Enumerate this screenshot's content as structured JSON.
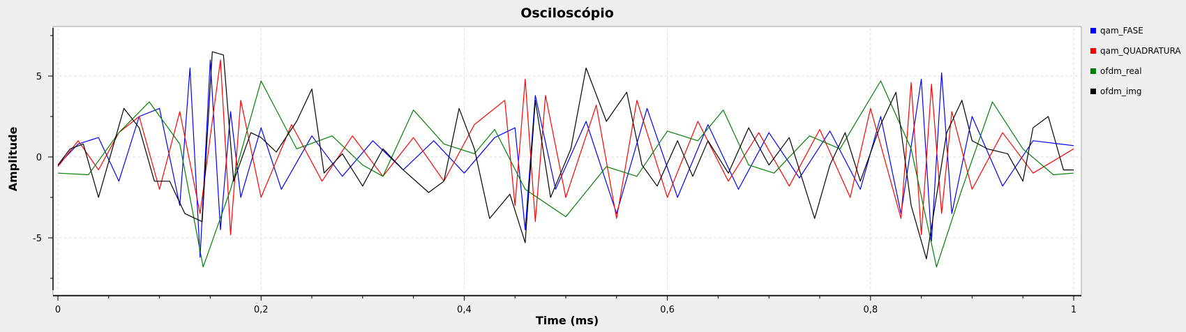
{
  "chart_data": {
    "type": "line",
    "title": "Osciloscópio",
    "xlabel": "Time (ms)",
    "ylabel": "Amplitude",
    "xlim": [
      0,
      1
    ],
    "ylim": [
      -8,
      8
    ],
    "x_ticks": [
      {
        "value": 0,
        "label": "0"
      },
      {
        "value": 0.2,
        "label": "0,2"
      },
      {
        "value": 0.4,
        "label": "0,4"
      },
      {
        "value": 0.6,
        "label": "0,6"
      },
      {
        "value": 0.8,
        "label": "0,8"
      },
      {
        "value": 1,
        "label": "1"
      }
    ],
    "y_ticks": [
      {
        "value": 5,
        "label": "5"
      },
      {
        "value": 0,
        "label": "0"
      },
      {
        "value": -5,
        "label": "-5"
      }
    ],
    "grid": true,
    "legend_position": "right",
    "series": [
      {
        "name": "qam_FASE",
        "color": "#0000ff",
        "x": [
          0,
          0.02,
          0.04,
          0.06,
          0.08,
          0.1,
          0.12,
          0.13,
          0.14,
          0.15,
          0.16,
          0.17,
          0.18,
          0.2,
          0.22,
          0.25,
          0.28,
          0.31,
          0.34,
          0.37,
          0.4,
          0.43,
          0.45,
          0.46,
          0.47,
          0.49,
          0.52,
          0.55,
          0.58,
          0.61,
          0.64,
          0.67,
          0.7,
          0.73,
          0.76,
          0.79,
          0.81,
          0.83,
          0.85,
          0.86,
          0.87,
          0.88,
          0.9,
          0.93,
          0.96,
          1
        ],
        "y": [
          -0.5,
          0.8,
          1.2,
          -1.5,
          2.5,
          3,
          -3,
          5.5,
          -6.2,
          6,
          -4.5,
          2.8,
          -2.5,
          1.8,
          -2,
          1.3,
          -1.2,
          1,
          -0.8,
          1,
          -1,
          1.2,
          1.8,
          -4.5,
          3.8,
          -2,
          2.2,
          -3.5,
          3,
          -2.5,
          2,
          -2,
          1.5,
          -1.3,
          1.6,
          -2,
          2.5,
          -3.5,
          4.8,
          -5.2,
          5.2,
          -3.5,
          2.5,
          -1.8,
          1,
          0.7
        ]
      },
      {
        "name": "qam_QUADRATURA",
        "color": "#ff0000",
        "x": [
          0,
          0.02,
          0.04,
          0.06,
          0.08,
          0.1,
          0.12,
          0.14,
          0.16,
          0.17,
          0.18,
          0.2,
          0.23,
          0.26,
          0.29,
          0.32,
          0.35,
          0.38,
          0.41,
          0.44,
          0.45,
          0.46,
          0.47,
          0.48,
          0.5,
          0.53,
          0.55,
          0.57,
          0.6,
          0.63,
          0.66,
          0.69,
          0.72,
          0.75,
          0.78,
          0.8,
          0.83,
          0.84,
          0.85,
          0.86,
          0.87,
          0.88,
          0.9,
          0.93,
          0.96,
          1
        ],
        "y": [
          -0.6,
          1,
          -0.8,
          1.5,
          2.5,
          -2,
          2.8,
          -3.5,
          6,
          -4.8,
          3.5,
          -2.5,
          2,
          -1.5,
          1.3,
          -1.2,
          1.2,
          -1.5,
          2,
          3.5,
          -3,
          4.8,
          -4,
          3.8,
          -2.5,
          3.2,
          -3.8,
          3.5,
          -2.5,
          2.2,
          -1.5,
          1.5,
          -1.8,
          1.7,
          -2.5,
          3,
          -3.8,
          4.6,
          -4.8,
          4.5,
          -3.5,
          2.8,
          -2,
          1.5,
          -1,
          0.5
        ]
      },
      {
        "name": "ofdm_real",
        "color": "#008000",
        "x": [
          0,
          0.03,
          0.06,
          0.09,
          0.12,
          0.143,
          0.17,
          0.2,
          0.235,
          0.27,
          0.3,
          0.32,
          0.35,
          0.38,
          0.41,
          0.43,
          0.46,
          0.5,
          0.54,
          0.57,
          0.6,
          0.63,
          0.655,
          0.68,
          0.705,
          0.74,
          0.77,
          0.81,
          0.84,
          0.865,
          0.89,
          0.92,
          0.95,
          0.98,
          1
        ],
        "y": [
          -1,
          -1.1,
          1.5,
          3.4,
          0.8,
          -6.8,
          -2,
          4.7,
          0.5,
          1.3,
          -0.5,
          -1.2,
          2.9,
          0.8,
          0.2,
          1.7,
          -2,
          -3.7,
          -0.6,
          -1.2,
          1.6,
          1,
          2.9,
          -0.5,
          -1,
          1.3,
          0.5,
          4.7,
          0.5,
          -6.8,
          -2,
          3.4,
          0.5,
          -1.1,
          -1
        ]
      },
      {
        "name": "ofdm_img",
        "color": "#000000",
        "x": [
          0,
          0.012,
          0.025,
          0.04,
          0.065,
          0.08,
          0.095,
          0.11,
          0.125,
          0.142,
          0.152,
          0.163,
          0.173,
          0.19,
          0.2,
          0.215,
          0.235,
          0.25,
          0.262,
          0.28,
          0.3,
          0.32,
          0.34,
          0.365,
          0.38,
          0.395,
          0.41,
          0.425,
          0.445,
          0.46,
          0.47,
          0.485,
          0.505,
          0.52,
          0.54,
          0.56,
          0.575,
          0.59,
          0.61,
          0.625,
          0.64,
          0.66,
          0.68,
          0.7,
          0.72,
          0.745,
          0.76,
          0.775,
          0.79,
          0.81,
          0.825,
          0.84,
          0.855,
          0.875,
          0.89,
          0.9,
          0.915,
          0.935,
          0.95,
          0.96,
          0.975,
          0.99,
          1
        ],
        "y": [
          -0.5,
          0.5,
          0.8,
          -2.5,
          3,
          1.8,
          -1.5,
          -1.5,
          -3.5,
          -4,
          6.5,
          6.3,
          -1.5,
          1.5,
          1.2,
          0.3,
          2.2,
          4.2,
          -1,
          0.2,
          -1.8,
          0.5,
          -0.8,
          -2.2,
          -1.5,
          3,
          0.5,
          -3.8,
          -2.3,
          -5.3,
          3.5,
          -2.5,
          0.5,
          5.5,
          2.2,
          4,
          -0.5,
          -1.8,
          1,
          -1.2,
          1,
          -1,
          1.8,
          -0.5,
          1.2,
          -3.8,
          -0.5,
          1.5,
          -1.5,
          2,
          4,
          -3,
          -6.3,
          1.5,
          3.5,
          1,
          0.5,
          0.2,
          -1.5,
          1.8,
          2.5,
          -0.8,
          -0.8
        ]
      }
    ]
  }
}
